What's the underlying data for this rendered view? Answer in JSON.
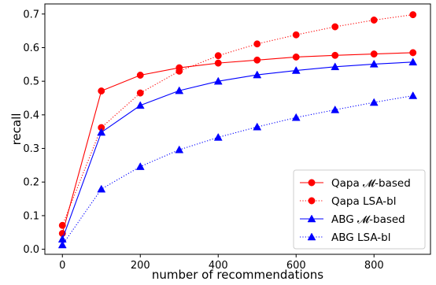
{
  "chart_data": {
    "type": "line",
    "xlabel": "number of recommendations",
    "ylabel": "recall",
    "xlim": [
      -45,
      945
    ],
    "ylim": [
      -0.015,
      0.73
    ],
    "xticks": [
      0,
      200,
      400,
      600,
      800
    ],
    "xtick_labels": [
      "0",
      "200",
      "400",
      "600",
      "800"
    ],
    "yticks": [
      0.0,
      0.1,
      0.2,
      0.3,
      0.4,
      0.5,
      0.6,
      0.7
    ],
    "ytick_labels": [
      "0.0",
      "0.1",
      "0.2",
      "0.3",
      "0.4",
      "0.5",
      "0.6",
      "0.7"
    ],
    "grid": false,
    "legend_position": "bottom-right",
    "x": [
      0,
      100,
      200,
      300,
      400,
      500,
      600,
      700,
      800,
      900
    ],
    "series": [
      {
        "name": "Qapa 𝓜-based",
        "color": "#ff0000",
        "line_style": "solid",
        "marker": "circle",
        "values": [
          0.047,
          0.471,
          0.518,
          0.54,
          0.554,
          0.563,
          0.572,
          0.577,
          0.581,
          0.585
        ]
      },
      {
        "name": "Qapa LSA-bl",
        "color": "#ff0000",
        "line_style": "dotted",
        "marker": "circle",
        "values": [
          0.071,
          0.362,
          0.465,
          0.53,
          0.576,
          0.611,
          0.638,
          0.662,
          0.682,
          0.698
        ]
      },
      {
        "name": "ABG 𝓜-based",
        "color": "#0000ff",
        "line_style": "solid",
        "marker": "triangle",
        "values": [
          0.03,
          0.348,
          0.428,
          0.472,
          0.5,
          0.519,
          0.532,
          0.543,
          0.551,
          0.557
        ]
      },
      {
        "name": "ABG LSA-bl",
        "color": "#0000ff",
        "line_style": "dotted",
        "marker": "triangle",
        "values": [
          0.013,
          0.179,
          0.246,
          0.296,
          0.333,
          0.364,
          0.392,
          0.415,
          0.437,
          0.457
        ]
      }
    ]
  }
}
